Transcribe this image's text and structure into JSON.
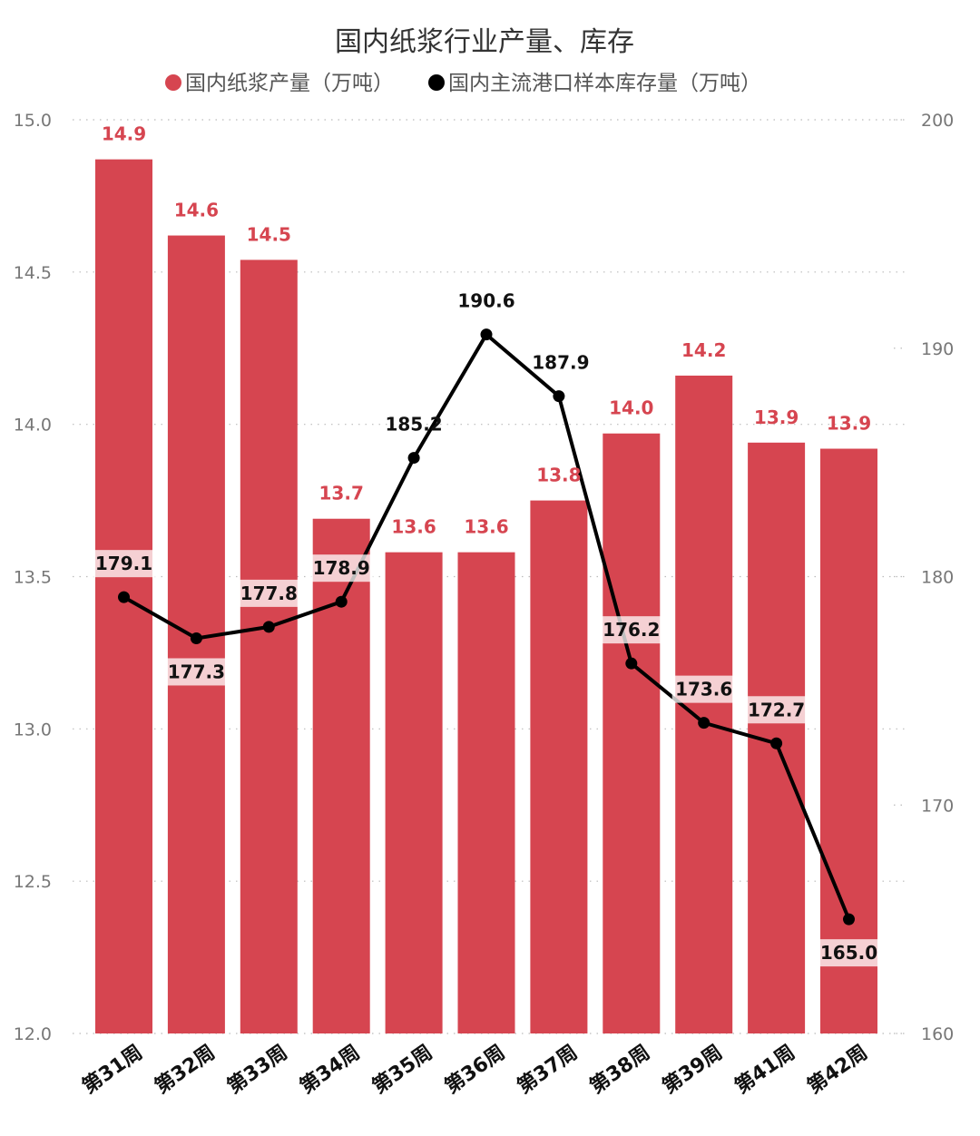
{
  "chart_data": {
    "type": "bar+line",
    "title": "国内纸浆行业产量、库存",
    "categories": [
      "第31周",
      "第32周",
      "第33周",
      "第34周",
      "第35周",
      "第36周",
      "第37周",
      "第38周",
      "第39周",
      "第41周",
      "第42周"
    ],
    "series": [
      {
        "name": "国内纸浆产量（万吨）",
        "type": "bar",
        "axis": "left",
        "color": "#d64550",
        "values": [
          14.87,
          14.62,
          14.54,
          13.69,
          13.58,
          13.58,
          13.75,
          13.97,
          14.16,
          13.94,
          13.92
        ],
        "labels": [
          "14.9",
          "14.6",
          "14.5",
          "13.7",
          "13.6",
          "13.6",
          "13.8",
          "14.0",
          "14.2",
          "13.9",
          "13.9"
        ]
      },
      {
        "name": "国内主流港口样本库存量（万吨）",
        "type": "line",
        "axis": "right",
        "color": "#000000",
        "values": [
          179.1,
          177.3,
          177.8,
          178.9,
          185.2,
          190.6,
          187.9,
          176.2,
          173.6,
          172.7,
          165.0
        ],
        "labels": [
          "179.1",
          "177.3",
          "177.8",
          "178.9",
          "185.2",
          "190.6",
          "187.9",
          "176.2",
          "173.6",
          "172.7",
          "165.0"
        ],
        "label_positions": [
          "above",
          "below",
          "above",
          "above",
          "above",
          "above",
          "above-right",
          "above",
          "above",
          "above",
          "below"
        ]
      }
    ],
    "y_left": {
      "lim": [
        12.0,
        15.0
      ],
      "ticks": [
        "12.0",
        "12.5",
        "13.0",
        "13.5",
        "14.0",
        "14.5",
        "15.0"
      ]
    },
    "y_right": {
      "lim": [
        160,
        200
      ],
      "ticks": [
        "160",
        "170",
        "180",
        "190",
        "200"
      ]
    },
    "grid": "dotted horizontal",
    "legend_placement": "top-center"
  }
}
